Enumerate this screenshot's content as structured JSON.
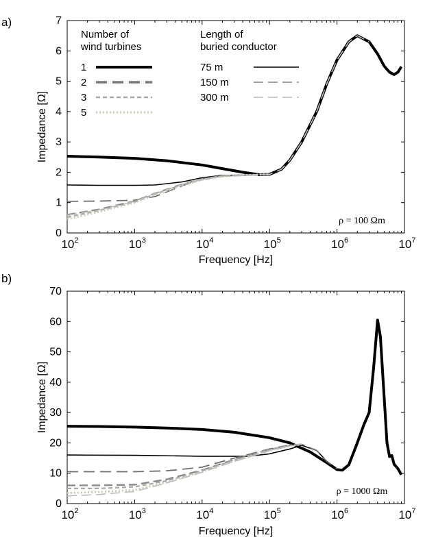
{
  "chart_data": [
    {
      "id": "a",
      "type": "line",
      "panel_label": "a)",
      "xlabel": "Frequency [Hz]",
      "ylabel": "Impedance [Ω]",
      "xscale": "log",
      "xlim": [
        100,
        10000000
      ],
      "ylim": [
        0,
        7
      ],
      "yticks": [
        "0",
        "1",
        "2",
        "3",
        "4",
        "5",
        "6",
        "7"
      ],
      "xtick_exponents": [
        "2",
        "3",
        "4",
        "5",
        "6",
        "7"
      ],
      "xtick_base": "10",
      "annotation": "ρ = 100 Ωm",
      "legend": {
        "turbines_title": [
          "Number of",
          "wind turbines"
        ],
        "turbines": [
          {
            "label": "1",
            "color": "#000000",
            "style": "solid-thick"
          },
          {
            "label": "2",
            "color": "#7a7a7a",
            "style": "dashed-thick"
          },
          {
            "label": "3",
            "color": "#a8a8a8",
            "style": "dashed"
          },
          {
            "label": "5",
            "color": "#c4d0b4",
            "style": "dotted"
          }
        ],
        "conductor_title": [
          "Length of",
          "buried conductor"
        ],
        "conductors": [
          {
            "label": "75 m",
            "color": "#000000",
            "style": "solid"
          },
          {
            "label": "150 m",
            "color": "#808080",
            "style": "longdash"
          },
          {
            "label": "300 m",
            "color": "#b8b8b8",
            "style": "longdash-light"
          }
        ]
      },
      "series": [
        {
          "name": "1 turbine, 75 m",
          "color": "#000000",
          "width": 4,
          "dash": "",
          "points": [
            [
              100,
              2.53
            ],
            [
              300,
              2.5
            ],
            [
              1000,
              2.46
            ],
            [
              3000,
              2.38
            ],
            [
              10000,
              2.24
            ],
            [
              20000,
              2.12
            ],
            [
              40000,
              2.0
            ],
            [
              70000,
              1.92
            ],
            [
              100000,
              1.93
            ],
            [
              150000,
              2.1
            ],
            [
              200000,
              2.4
            ],
            [
              300000,
              3.0
            ],
            [
              500000,
              4.0
            ],
            [
              700000,
              4.9
            ],
            [
              1000000,
              5.7
            ],
            [
              1500000,
              6.3
            ],
            [
              2000000,
              6.5
            ],
            [
              3000000,
              6.3
            ],
            [
              4000000,
              5.9
            ],
            [
              5000000,
              5.5
            ],
            [
              6000000,
              5.3
            ],
            [
              7000000,
              5.22
            ],
            [
              8000000,
              5.3
            ],
            [
              9000000,
              5.48
            ]
          ]
        },
        {
          "name": "1 turbine, 150 m",
          "color": "#000000",
          "width": 1.6,
          "dash": "",
          "points": [
            [
              100,
              1.58
            ],
            [
              300,
              1.57
            ],
            [
              1000,
              1.57
            ],
            [
              2000,
              1.58
            ],
            [
              5000,
              1.68
            ],
            [
              10000,
              1.82
            ],
            [
              20000,
              1.9
            ],
            [
              50000,
              1.91
            ],
            [
              100000,
              1.93
            ]
          ]
        },
        {
          "name": "2 turbines, 150 m",
          "color": "#6e6e6e",
          "width": 1.8,
          "dash": "16 8",
          "points": [
            [
              100,
              1.04
            ],
            [
              300,
              1.05
            ],
            [
              1000,
              1.08
            ],
            [
              2000,
              1.2
            ],
            [
              5000,
              1.55
            ],
            [
              10000,
              1.78
            ],
            [
              20000,
              1.88
            ],
            [
              50000,
              1.91
            ],
            [
              100000,
              1.93
            ]
          ]
        },
        {
          "name": "2 turbines, 300 m",
          "color": "#8a8a8a",
          "width": 2.4,
          "dash": "12 6",
          "points": [
            [
              100,
              0.6
            ],
            [
              300,
              0.78
            ],
            [
              1000,
              1.05
            ],
            [
              2000,
              1.3
            ],
            [
              5000,
              1.6
            ],
            [
              10000,
              1.78
            ],
            [
              20000,
              1.88
            ],
            [
              50000,
              1.91
            ],
            [
              100000,
              1.93
            ]
          ]
        },
        {
          "name": "3 turbines, 300 m",
          "color": "#a8a8a8",
          "width": 2.2,
          "dash": "6 4",
          "points": [
            [
              100,
              0.52
            ],
            [
              300,
              0.74
            ],
            [
              1000,
              1.02
            ],
            [
              2000,
              1.28
            ],
            [
              5000,
              1.58
            ],
            [
              10000,
              1.76
            ],
            [
              20000,
              1.87
            ],
            [
              50000,
              1.91
            ],
            [
              100000,
              1.93
            ]
          ]
        },
        {
          "name": "5 turbines, 300 m",
          "color": "#c4d0b4",
          "width": 3,
          "dash": "2 3",
          "points": [
            [
              100,
              0.45
            ],
            [
              300,
              0.7
            ],
            [
              1000,
              1.0
            ],
            [
              2000,
              1.26
            ],
            [
              5000,
              1.56
            ],
            [
              10000,
              1.75
            ],
            [
              20000,
              1.86
            ],
            [
              50000,
              1.91
            ],
            [
              100000,
              1.93
            ]
          ]
        },
        {
          "name": "1 turbine, 300 m",
          "color": "#bdbdbd",
          "width": 1.6,
          "dash": "14 7",
          "points": [
            [
              100,
              0.58
            ],
            [
              300,
              0.76
            ],
            [
              1000,
              1.04
            ],
            [
              2000,
              1.29
            ],
            [
              5000,
              1.6
            ],
            [
              10000,
              1.77
            ],
            [
              20000,
              1.88
            ],
            [
              50000,
              1.91
            ],
            [
              100000,
              1.93
            ],
            [
              150000,
              2.1
            ],
            [
              200000,
              2.4
            ],
            [
              300000,
              3.0
            ],
            [
              500000,
              4.0
            ],
            [
              700000,
              4.9
            ],
            [
              1000000,
              5.7
            ],
            [
              1500000,
              6.3
            ],
            [
              2000000,
              6.5
            ],
            [
              3000000,
              6.3
            ]
          ]
        }
      ]
    },
    {
      "id": "b",
      "type": "line",
      "panel_label": "b)",
      "xlabel": "Frequency [Hz]",
      "ylabel": "Impedance [Ω]",
      "xscale": "log",
      "xlim": [
        100,
        10000000
      ],
      "ylim": [
        0,
        70
      ],
      "yticks": [
        "0",
        "10",
        "20",
        "30",
        "40",
        "50",
        "60",
        "70"
      ],
      "xtick_exponents": [
        "2",
        "3",
        "4",
        "5",
        "6",
        "7"
      ],
      "xtick_base": "10",
      "annotation": "ρ = 1000 Ωm",
      "series": [
        {
          "name": "1 turbine, 75 m",
          "color": "#000000",
          "width": 4,
          "dash": "",
          "points": [
            [
              100,
              25.5
            ],
            [
              300,
              25.4
            ],
            [
              1000,
              25.2
            ],
            [
              3000,
              24.9
            ],
            [
              10000,
              24.4
            ],
            [
              30000,
              23.5
            ],
            [
              100000,
              21.7
            ],
            [
              200000,
              20.0
            ],
            [
              400000,
              17.0
            ],
            [
              700000,
              13.5
            ],
            [
              1000000,
              11.2
            ],
            [
              1200000,
              11.0
            ],
            [
              1500000,
              12.8
            ],
            [
              2000000,
              20.0
            ],
            [
              2500000,
              26.0
            ],
            [
              3000000,
              30.0
            ],
            [
              3500000,
              45.0
            ],
            [
              4000000,
              60.5
            ],
            [
              4400000,
              55.0
            ],
            [
              5000000,
              35.0
            ],
            [
              5500000,
              20.0
            ],
            [
              6000000,
              15.5
            ],
            [
              6500000,
              15.8
            ],
            [
              7000000,
              13.0
            ],
            [
              8000000,
              11.5
            ],
            [
              9000000,
              9.5
            ]
          ]
        },
        {
          "name": "1 turbine, 150 m",
          "color": "#000000",
          "width": 1.6,
          "dash": "",
          "points": [
            [
              100,
              16.0
            ],
            [
              1000,
              15.9
            ],
            [
              10000,
              15.6
            ],
            [
              50000,
              15.6
            ],
            [
              100000,
              16.4
            ],
            [
              200000,
              18.0
            ],
            [
              300000,
              19.2
            ],
            [
              500000,
              17.5
            ],
            [
              700000,
              14.0
            ],
            [
              1000000,
              11.5
            ]
          ]
        },
        {
          "name": "2 turbines, 150 m",
          "color": "#6e6e6e",
          "width": 1.8,
          "dash": "16 8",
          "points": [
            [
              100,
              10.5
            ],
            [
              1000,
              10.5
            ],
            [
              3000,
              10.8
            ],
            [
              10000,
              12.0
            ],
            [
              30000,
              15.0
            ],
            [
              100000,
              18.0
            ],
            [
              200000,
              19.3
            ],
            [
              300000,
              19.5
            ],
            [
              500000,
              17.5
            ],
            [
              700000,
              14.0
            ],
            [
              1000000,
              11.5
            ]
          ]
        },
        {
          "name": "2 turbines, 300 m",
          "color": "#8a8a8a",
          "width": 2.4,
          "dash": "12 6",
          "points": [
            [
              100,
              6.0
            ],
            [
              300,
              6.0
            ],
            [
              1000,
              6.2
            ],
            [
              3000,
              8.0
            ],
            [
              10000,
              11.0
            ],
            [
              30000,
              14.5
            ],
            [
              100000,
              17.8
            ],
            [
              200000,
              19.2
            ],
            [
              300000,
              19.5
            ]
          ]
        },
        {
          "name": "3 turbines, 300 m",
          "color": "#a8a8a8",
          "width": 2.2,
          "dash": "6 4",
          "points": [
            [
              100,
              5.0
            ],
            [
              300,
              5.0
            ],
            [
              1000,
              5.5
            ],
            [
              3000,
              7.5
            ],
            [
              10000,
              10.8
            ],
            [
              30000,
              14.3
            ],
            [
              100000,
              17.7
            ],
            [
              200000,
              19.1
            ],
            [
              300000,
              19.5
            ]
          ]
        },
        {
          "name": "5 turbines, 300 m",
          "color": "#c4d0b4",
          "width": 3,
          "dash": "2 3",
          "points": [
            [
              100,
              3.5
            ],
            [
              300,
              3.8
            ],
            [
              1000,
              4.5
            ],
            [
              3000,
              7.0
            ],
            [
              10000,
              10.5
            ],
            [
              30000,
              14.0
            ],
            [
              100000,
              17.5
            ],
            [
              200000,
              19.0
            ],
            [
              300000,
              19.5
            ]
          ]
        },
        {
          "name": "1 turbine, 300 m",
          "color": "#bdbdbd",
          "width": 1.6,
          "dash": "14 7",
          "points": [
            [
              100,
              2.5
            ],
            [
              300,
              3.0
            ],
            [
              1000,
              4.0
            ],
            [
              3000,
              6.8
            ],
            [
              10000,
              10.3
            ],
            [
              30000,
              13.9
            ],
            [
              100000,
              17.4
            ],
            [
              200000,
              19.0
            ],
            [
              300000,
              19.5
            ]
          ]
        }
      ]
    }
  ]
}
